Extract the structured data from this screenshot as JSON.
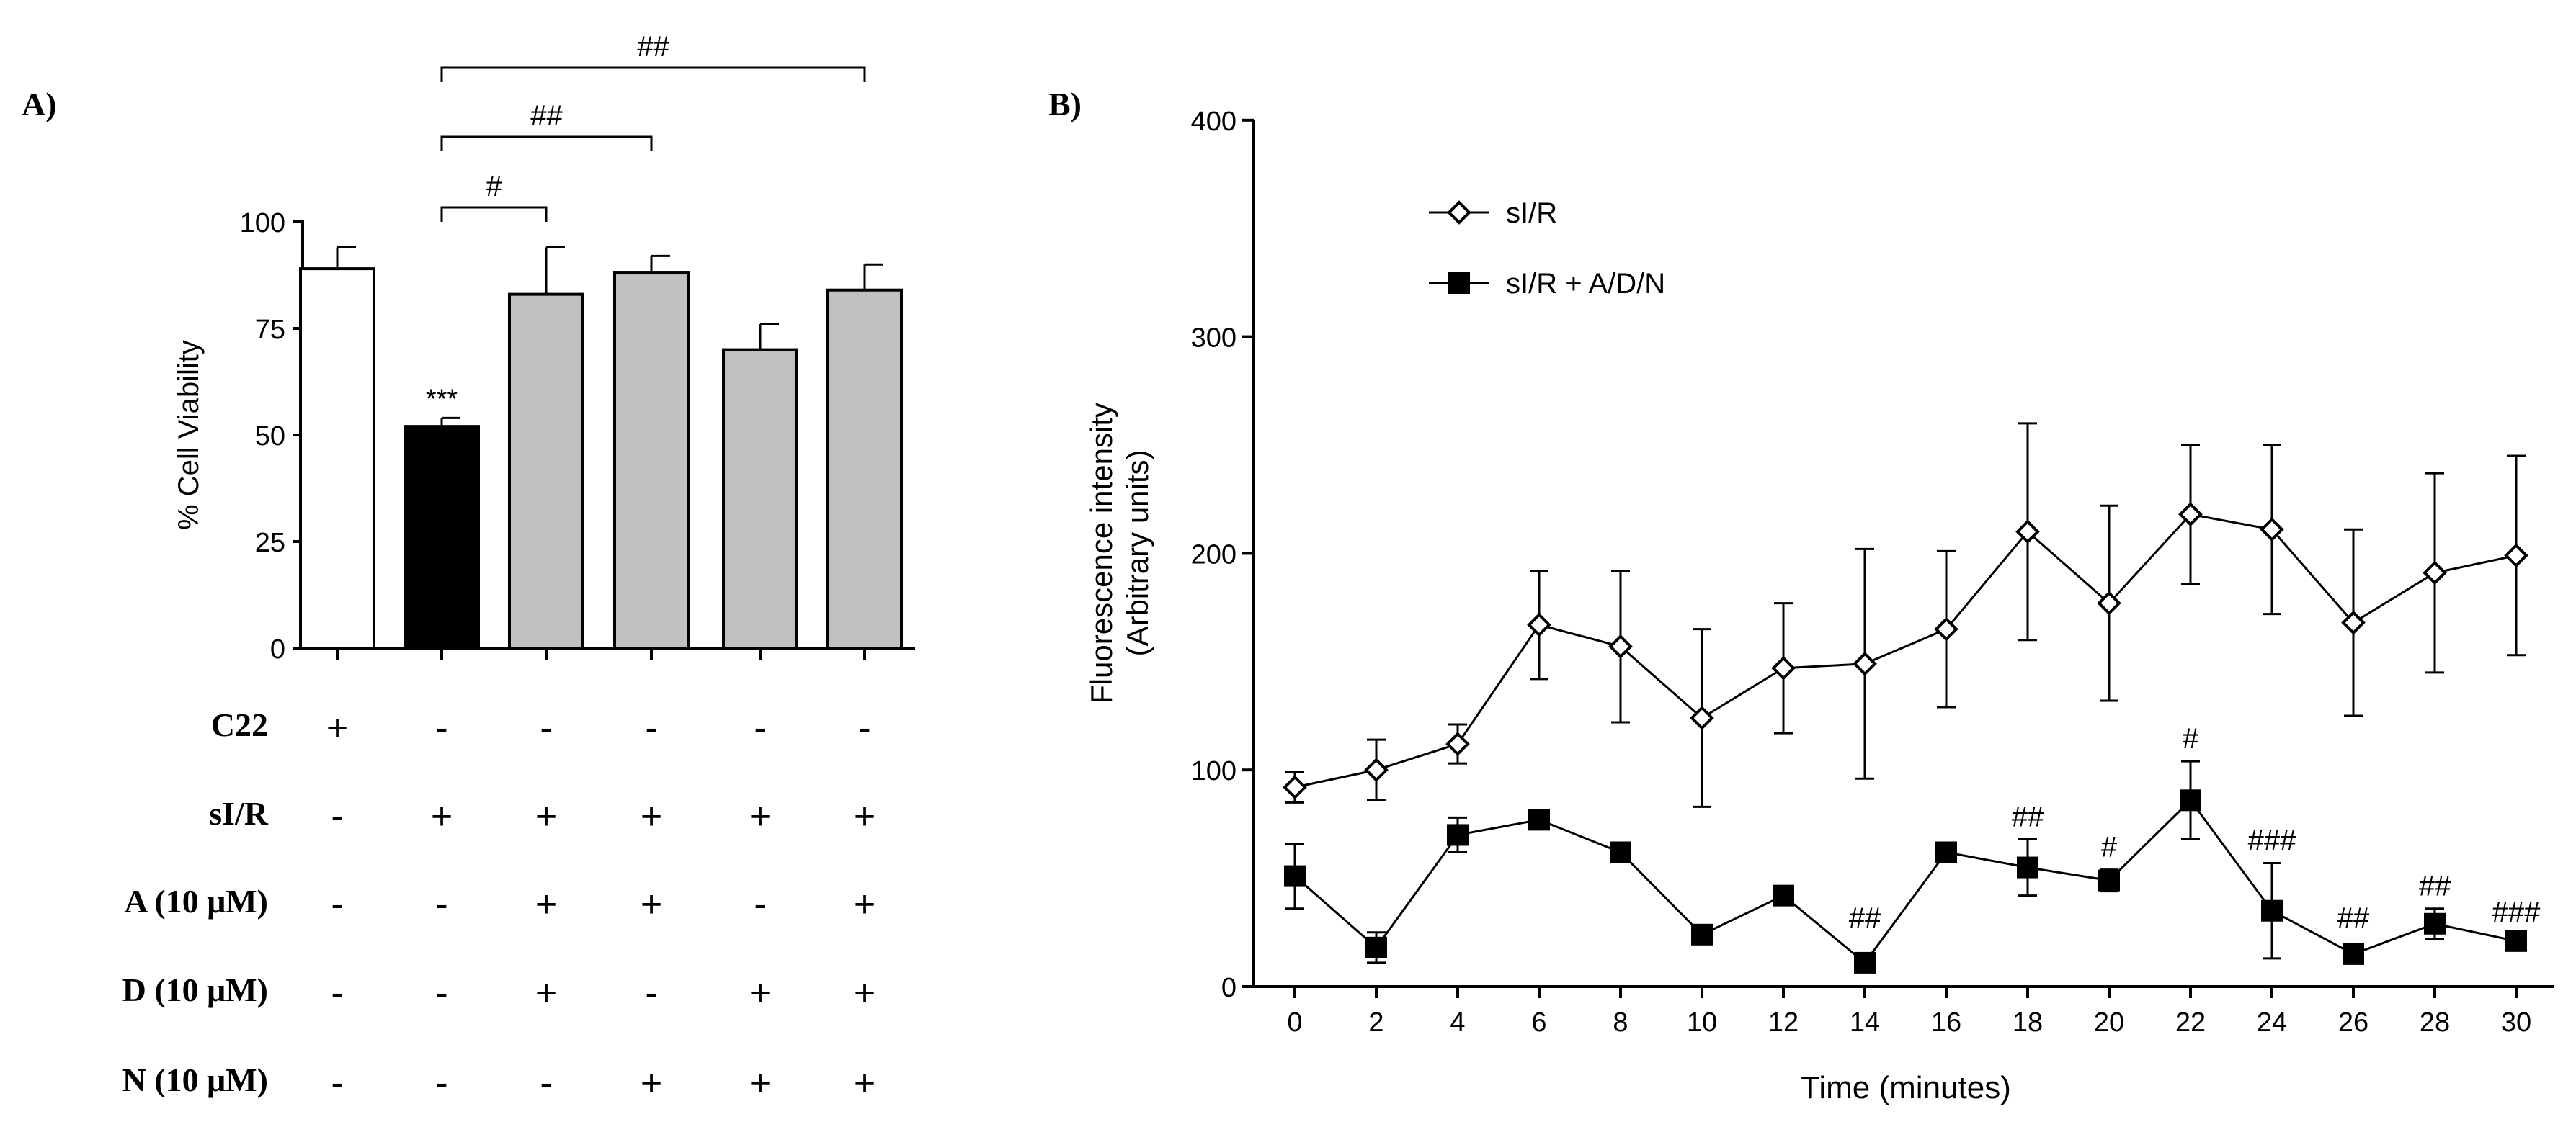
{
  "chart_data": [
    {
      "type": "bar",
      "panel_label": "A)",
      "ylabel": "% Cell Viability",
      "ylim": [
        0,
        100
      ],
      "yticks": [
        "0",
        "25",
        "50",
        "75",
        "100"
      ],
      "bars": [
        {
          "value": 89,
          "error": 5,
          "fill": "#ffffff",
          "mark": ""
        },
        {
          "value": 52,
          "error": 2,
          "fill": "#000000",
          "mark": "***"
        },
        {
          "value": 83,
          "error": 11,
          "fill": "#c0c0c0",
          "mark": ""
        },
        {
          "value": 88,
          "error": 4,
          "fill": "#c0c0c0",
          "mark": ""
        },
        {
          "value": 70,
          "error": 6,
          "fill": "#c0c0c0",
          "mark": ""
        },
        {
          "value": 84,
          "error": 6,
          "fill": "#c0c0c0",
          "mark": ""
        }
      ],
      "brackets": [
        {
          "from": 1,
          "to": 2,
          "label": "#"
        },
        {
          "from": 1,
          "to": 3,
          "label": "##"
        },
        {
          "from": 1,
          "to": 5,
          "label": "##"
        }
      ],
      "treatment_table": [
        {
          "label": "C22",
          "values": [
            "+",
            "-",
            "-",
            "-",
            "-",
            "-"
          ]
        },
        {
          "label": "sI/R",
          "values": [
            "-",
            "+",
            "+",
            "+",
            "+",
            "+"
          ]
        },
        {
          "label": "A (10 μM)",
          "values": [
            "-",
            "-",
            "+",
            "+",
            "-",
            "+"
          ]
        },
        {
          "label": "D (10 μM)",
          "values": [
            "-",
            "-",
            "+",
            "-",
            "+",
            "+"
          ]
        },
        {
          "label": "N (10 μM)",
          "values": [
            "-",
            "-",
            "-",
            "+",
            "+",
            "+"
          ]
        }
      ]
    },
    {
      "type": "line",
      "panel_label": "B)",
      "xlabel": "Time (minutes)",
      "ylabel": "Fluorescence intensity",
      "ylabel2": "(Arbitrary units)",
      "xlim": [
        -2,
        31
      ],
      "ylim": [
        0,
        400
      ],
      "x": [
        0,
        2,
        4,
        6,
        8,
        10,
        12,
        14,
        16,
        18,
        20,
        22,
        24,
        26,
        28,
        30
      ],
      "xticks": [
        "0",
        "2",
        "4",
        "6",
        "8",
        "10",
        "12",
        "14",
        "16",
        "18",
        "20",
        "22",
        "24",
        "26",
        "28",
        "30"
      ],
      "yticks": [
        "0",
        "100",
        "200",
        "300",
        "400"
      ],
      "series": [
        {
          "name": "sI/R",
          "marker": "open-diamond",
          "values": [
            92,
            100,
            112,
            167,
            157,
            124,
            147,
            149,
            165,
            210,
            177,
            218,
            211,
            168,
            191,
            199
          ],
          "errors": [
            7,
            14,
            9,
            25,
            35,
            41,
            30,
            53,
            36,
            50,
            45,
            32,
            39,
            43,
            46,
            46
          ]
        },
        {
          "name": "sI/R + A/D/N",
          "marker": "filled-square",
          "values": [
            51,
            18,
            70,
            77,
            62,
            24,
            42,
            11,
            62,
            55,
            49,
            86,
            35,
            15,
            29,
            21
          ],
          "errors": [
            15,
            7,
            8,
            3,
            4,
            2,
            2,
            3,
            3,
            13,
            5,
            18,
            22,
            3,
            7,
            3
          ],
          "annotations": [
            "",
            "",
            "",
            "",
            "",
            "",
            "",
            "##",
            "",
            "##",
            "#",
            "#",
            "###",
            "##",
            "##",
            "###"
          ]
        }
      ]
    }
  ]
}
